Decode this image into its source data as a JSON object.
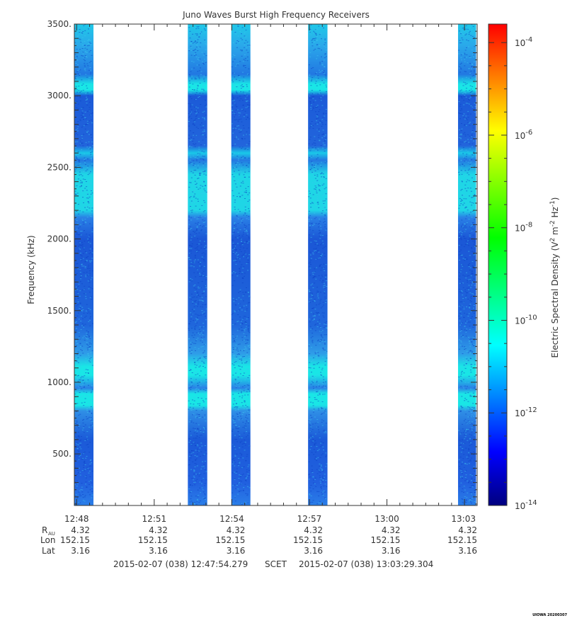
{
  "chart_data": {
    "type": "heatmap",
    "title": "Juno Waves Burst High Frequency Receivers",
    "ylabel": "Frequency (kHz)",
    "ylim": [
      140,
      3500
    ],
    "y_ticks": [
      "500.",
      "1000.",
      "1500.",
      "2000.",
      "2500.",
      "3000.",
      "3500."
    ],
    "y_tick_values": [
      500,
      1000,
      1500,
      2000,
      2500,
      3000,
      3500
    ],
    "x_ticks": [
      "12:48",
      "12:51",
      "12:54",
      "12:57",
      "13:00",
      "13:03"
    ],
    "x_tick_minutes": [
      48,
      51,
      54,
      57,
      60,
      63
    ],
    "xlim_minutes": [
      47.91,
      63.49
    ],
    "ephemeris": {
      "labels": [
        "R",
        "Lon",
        "Lat"
      ],
      "r_subscript": "AU",
      "rows": [
        [
          "4.32",
          "4.32",
          "4.32",
          "4.32",
          "4.32",
          "4.32"
        ],
        [
          "152.15",
          "152.15",
          "152.15",
          "152.15",
          "152.15",
          "152.15"
        ],
        [
          "3.16",
          "3.16",
          "3.16",
          "3.16",
          "3.16",
          "3.16"
        ]
      ]
    },
    "time_range": {
      "start": "2015-02-07 (038) 12:47:54.279",
      "label": "SCET",
      "end": "2015-02-07 (038) 13:03:29.304"
    },
    "bursts_minutes": [
      [
        47.91,
        48.65
      ],
      [
        52.3,
        53.05
      ],
      [
        53.98,
        54.72
      ],
      [
        56.95,
        57.7
      ],
      [
        62.75,
        63.45
      ]
    ],
    "bright_bands_khz": [
      [
        3040,
        3080
      ],
      [
        2580,
        2620
      ],
      [
        2200,
        2450
      ],
      [
        1050,
        1110
      ],
      [
        840,
        920
      ]
    ],
    "colorbar": {
      "label_main": "Electric Spectral Density (V",
      "label_sup1": "2",
      "label_mid": " m",
      "label_sup2": "-2",
      "label_mid2": " Hz",
      "label_sup3": "-1",
      "label_end": ")",
      "log_range": [
        -14,
        -3.6
      ],
      "ticks": [
        {
          "base": "10",
          "exp": "-4",
          "value": -4
        },
        {
          "base": "10",
          "exp": "-6",
          "value": -6
        },
        {
          "base": "10",
          "exp": "-8",
          "value": -8
        },
        {
          "base": "10",
          "exp": "-10",
          "value": -10
        },
        {
          "base": "10",
          "exp": "-12",
          "value": -12
        },
        {
          "base": "10",
          "exp": "-14",
          "value": -14
        }
      ],
      "colors": [
        "#00007f",
        "#0000ff",
        "#007fff",
        "#00ffff",
        "#00ff7f",
        "#00ff00",
        "#7fff00",
        "#ffff00",
        "#ff7f00",
        "#ff0000"
      ]
    },
    "stamp": "UIOWA 20200307"
  }
}
